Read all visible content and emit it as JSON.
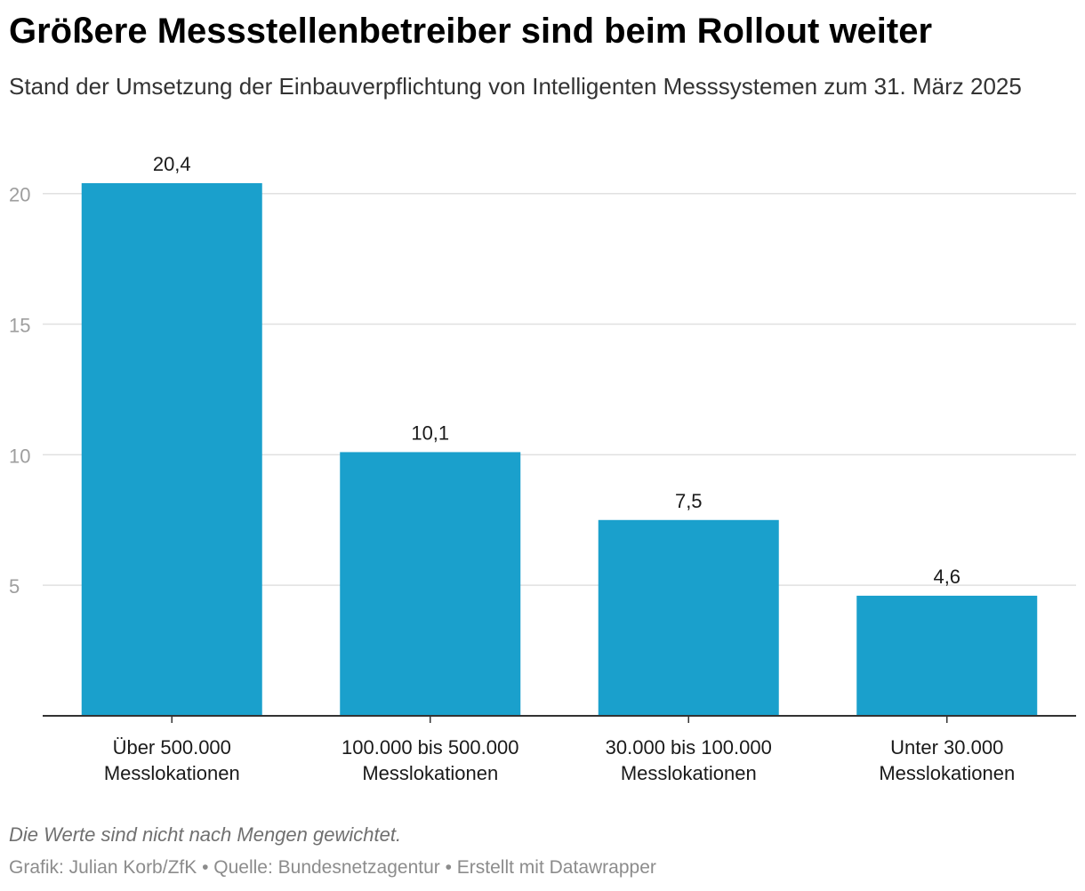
{
  "title": "Größere Messstellenbetreiber sind beim Rollout weiter",
  "subtitle": "Stand der Umsetzung der Einbauverpflichtung von Intelligenten Messsystemen zum 31. März 2025",
  "chart_data": {
    "type": "bar",
    "categories": [
      [
        "Über 500.000",
        "Messlokationen"
      ],
      [
        "100.000 bis 500.000",
        "Messlokationen"
      ],
      [
        "30.000 bis 100.000",
        "Messlokationen"
      ],
      [
        "Unter 30.000",
        "Messlokationen"
      ]
    ],
    "values": [
      20.4,
      10.1,
      7.5,
      4.6
    ],
    "value_labels": [
      "20,4",
      "10,1",
      "7,5",
      "4,6"
    ],
    "yticks": [
      5,
      10,
      15,
      20
    ],
    "ylim": [
      0,
      20.4
    ],
    "bar_color": "#1aa0cc",
    "grid": true,
    "xlabel": "",
    "ylabel": ""
  },
  "note": "Die Werte sind nicht nach Mengen gewichtet.",
  "footer": "Grafik: Julian Korb/ZfK • Quelle: Bundesnetzagentur • Erstellt mit Datawrapper"
}
